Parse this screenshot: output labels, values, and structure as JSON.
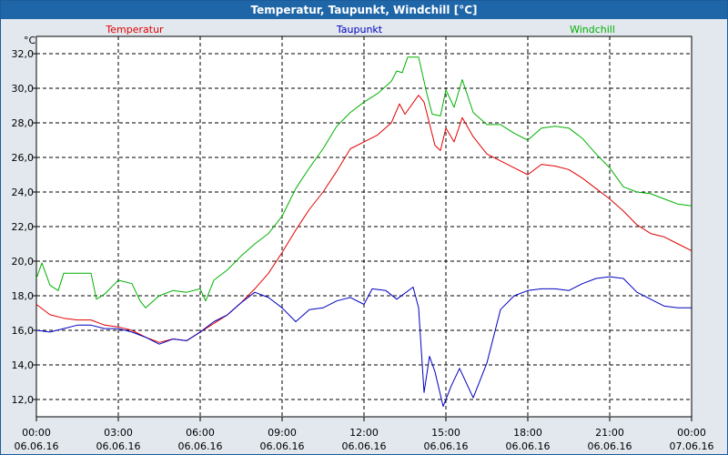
{
  "title": "Temperatur, Taupunkt, Windchill [°C]",
  "chart_data": {
    "type": "line",
    "title": "Temperatur, Taupunkt, Windchill [°C]",
    "yunit": "°C",
    "ylim": [
      11,
      33
    ],
    "xlim": [
      0,
      24
    ],
    "grid": true,
    "y_ticks": [
      12,
      14,
      16,
      18,
      20,
      22,
      24,
      26,
      28,
      30,
      32
    ],
    "y_tick_labels": [
      "12,0",
      "14,0",
      "16,0",
      "18,0",
      "20,0",
      "22,0",
      "24,0",
      "26,0",
      "28,0",
      "30,0",
      "32,0"
    ],
    "x_ticks": [
      {
        "hour": 0,
        "time": "00:00",
        "date": "06.06.16"
      },
      {
        "hour": 3,
        "time": "03:00",
        "date": "06.06.16"
      },
      {
        "hour": 6,
        "time": "06:00",
        "date": "06.06.16"
      },
      {
        "hour": 9,
        "time": "09:00",
        "date": "06.06.16"
      },
      {
        "hour": 12,
        "time": "12:00",
        "date": "06.06.16"
      },
      {
        "hour": 15,
        "time": "15:00",
        "date": "06.06.16"
      },
      {
        "hour": 18,
        "time": "18:00",
        "date": "06.06.16"
      },
      {
        "hour": 21,
        "time": "21:00",
        "date": "06.06.16"
      },
      {
        "hour": 24,
        "time": "00:00",
        "date": "07.06.16"
      }
    ],
    "legend_placement": "top",
    "series": [
      {
        "name": "Temperatur",
        "color": "#e00000",
        "points": [
          [
            0,
            17.5
          ],
          [
            0.5,
            16.9
          ],
          [
            1,
            16.7
          ],
          [
            1.5,
            16.6
          ],
          [
            2,
            16.6
          ],
          [
            2.5,
            16.3
          ],
          [
            3,
            16.2
          ],
          [
            3.5,
            16.0
          ],
          [
            4,
            15.6
          ],
          [
            4.5,
            15.3
          ],
          [
            5,
            15.5
          ],
          [
            5.5,
            15.4
          ],
          [
            6,
            15.9
          ],
          [
            6.5,
            16.4
          ],
          [
            7,
            16.9
          ],
          [
            7.5,
            17.6
          ],
          [
            8,
            18.4
          ],
          [
            8.5,
            19.3
          ],
          [
            9,
            20.5
          ],
          [
            9.5,
            21.8
          ],
          [
            10,
            23.0
          ],
          [
            10.5,
            24.0
          ],
          [
            11,
            25.2
          ],
          [
            11.5,
            26.5
          ],
          [
            12,
            26.9
          ],
          [
            12.5,
            27.3
          ],
          [
            13,
            28.0
          ],
          [
            13.3,
            29.1
          ],
          [
            13.5,
            28.5
          ],
          [
            14,
            29.6
          ],
          [
            14.2,
            29.2
          ],
          [
            14.6,
            26.7
          ],
          [
            14.8,
            26.4
          ],
          [
            15,
            27.7
          ],
          [
            15.3,
            26.9
          ],
          [
            15.6,
            28.3
          ],
          [
            16,
            27.2
          ],
          [
            16.5,
            26.2
          ],
          [
            17,
            25.8
          ],
          [
            17.5,
            25.4
          ],
          [
            18,
            25.0
          ],
          [
            18.5,
            25.6
          ],
          [
            19,
            25.5
          ],
          [
            19.5,
            25.3
          ],
          [
            20,
            24.8
          ],
          [
            20.5,
            24.2
          ],
          [
            21,
            23.6
          ],
          [
            21.5,
            22.9
          ],
          [
            22,
            22.1
          ],
          [
            22.5,
            21.6
          ],
          [
            23,
            21.4
          ],
          [
            23.5,
            21.0
          ],
          [
            24,
            20.6
          ]
        ]
      },
      {
        "name": "Taupunkt",
        "color": "#0000c0",
        "points": [
          [
            0,
            16.0
          ],
          [
            0.5,
            15.9
          ],
          [
            1,
            16.1
          ],
          [
            1.5,
            16.3
          ],
          [
            2,
            16.3
          ],
          [
            2.5,
            16.1
          ],
          [
            3,
            16.1
          ],
          [
            3.5,
            15.9
          ],
          [
            4,
            15.6
          ],
          [
            4.5,
            15.2
          ],
          [
            5,
            15.5
          ],
          [
            5.5,
            15.4
          ],
          [
            6,
            15.9
          ],
          [
            6.5,
            16.5
          ],
          [
            7,
            16.9
          ],
          [
            7.5,
            17.6
          ],
          [
            8,
            18.2
          ],
          [
            8.5,
            17.9
          ],
          [
            9,
            17.3
          ],
          [
            9.5,
            16.5
          ],
          [
            10,
            17.2
          ],
          [
            10.5,
            17.3
          ],
          [
            11,
            17.7
          ],
          [
            11.5,
            17.9
          ],
          [
            12,
            17.5
          ],
          [
            12.3,
            18.4
          ],
          [
            12.8,
            18.3
          ],
          [
            13.2,
            17.8
          ],
          [
            13.8,
            18.5
          ],
          [
            14,
            17.3
          ],
          [
            14.2,
            12.4
          ],
          [
            14.4,
            14.5
          ],
          [
            14.6,
            13.6
          ],
          [
            14.9,
            11.6
          ],
          [
            15.2,
            12.8
          ],
          [
            15.5,
            13.8
          ],
          [
            16,
            12.1
          ],
          [
            16.5,
            14.1
          ],
          [
            17,
            17.2
          ],
          [
            17.5,
            18.0
          ],
          [
            18,
            18.3
          ],
          [
            18.5,
            18.4
          ],
          [
            19,
            18.4
          ],
          [
            19.5,
            18.3
          ],
          [
            20,
            18.7
          ],
          [
            20.5,
            19.0
          ],
          [
            21,
            19.1
          ],
          [
            21.5,
            19.0
          ],
          [
            22,
            18.2
          ],
          [
            22.5,
            17.8
          ],
          [
            23,
            17.4
          ],
          [
            23.5,
            17.3
          ],
          [
            24,
            17.3
          ]
        ]
      },
      {
        "name": "Windchill",
        "color": "#00b000",
        "points": [
          [
            0,
            19.0
          ],
          [
            0.2,
            19.9
          ],
          [
            0.5,
            18.6
          ],
          [
            0.8,
            18.3
          ],
          [
            1,
            19.3
          ],
          [
            1.5,
            19.3
          ],
          [
            2,
            19.3
          ],
          [
            2.2,
            17.8
          ],
          [
            2.5,
            18.1
          ],
          [
            3,
            18.9
          ],
          [
            3.5,
            18.7
          ],
          [
            3.8,
            17.7
          ],
          [
            4,
            17.3
          ],
          [
            4.5,
            18.0
          ],
          [
            5,
            18.3
          ],
          [
            5.5,
            18.2
          ],
          [
            6,
            18.4
          ],
          [
            6.2,
            17.7
          ],
          [
            6.5,
            18.9
          ],
          [
            7,
            19.5
          ],
          [
            7.5,
            20.3
          ],
          [
            8,
            21.0
          ],
          [
            8.5,
            21.6
          ],
          [
            9,
            22.6
          ],
          [
            9.5,
            24.2
          ],
          [
            10,
            25.4
          ],
          [
            10.5,
            26.5
          ],
          [
            11,
            27.8
          ],
          [
            11.5,
            28.6
          ],
          [
            12,
            29.2
          ],
          [
            12.5,
            29.7
          ],
          [
            13,
            30.4
          ],
          [
            13.2,
            31.0
          ],
          [
            13.4,
            30.9
          ],
          [
            13.6,
            31.8
          ],
          [
            14,
            31.8
          ],
          [
            14.3,
            29.7
          ],
          [
            14.5,
            28.5
          ],
          [
            14.8,
            28.4
          ],
          [
            15,
            29.9
          ],
          [
            15.3,
            28.9
          ],
          [
            15.6,
            30.5
          ],
          [
            16,
            28.6
          ],
          [
            16.5,
            27.9
          ],
          [
            17,
            27.9
          ],
          [
            17.5,
            27.4
          ],
          [
            18,
            27.0
          ],
          [
            18.5,
            27.7
          ],
          [
            19,
            27.8
          ],
          [
            19.5,
            27.7
          ],
          [
            20,
            27.1
          ],
          [
            20.5,
            26.2
          ],
          [
            21,
            25.4
          ],
          [
            21.5,
            24.3
          ],
          [
            22,
            24.0
          ],
          [
            22.5,
            23.9
          ],
          [
            23,
            23.6
          ],
          [
            23.5,
            23.3
          ],
          [
            24,
            23.2
          ]
        ]
      }
    ]
  }
}
